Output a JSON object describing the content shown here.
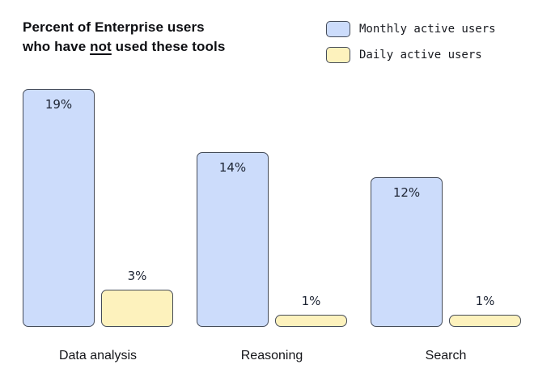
{
  "title": {
    "line1": "Percent of Enterprise users",
    "line2_pre": "who have ",
    "line2_underlined": "not",
    "line2_post": " used these tools"
  },
  "legend": {
    "items": [
      {
        "label": "Monthly active users",
        "color": "#ccdcfb"
      },
      {
        "label": "Daily active users",
        "color": "#fdf2bd"
      }
    ]
  },
  "chart_data": {
    "type": "bar",
    "title": "Percent of Enterprise users who have not used these tools",
    "categories": [
      "Data analysis",
      "Reasoning",
      "Search"
    ],
    "series": [
      {
        "name": "Monthly active users",
        "values": [
          19,
          14,
          12
        ],
        "color": "#ccdcfb"
      },
      {
        "name": "Daily active users",
        "values": [
          3,
          1,
          1
        ],
        "color": "#fdf2bd"
      }
    ],
    "unit": "%",
    "ylim": [
      0,
      20
    ],
    "grid": false,
    "legend_position": "top-right",
    "bar_border_color": "#454c59",
    "label_color": "#1d2433"
  }
}
